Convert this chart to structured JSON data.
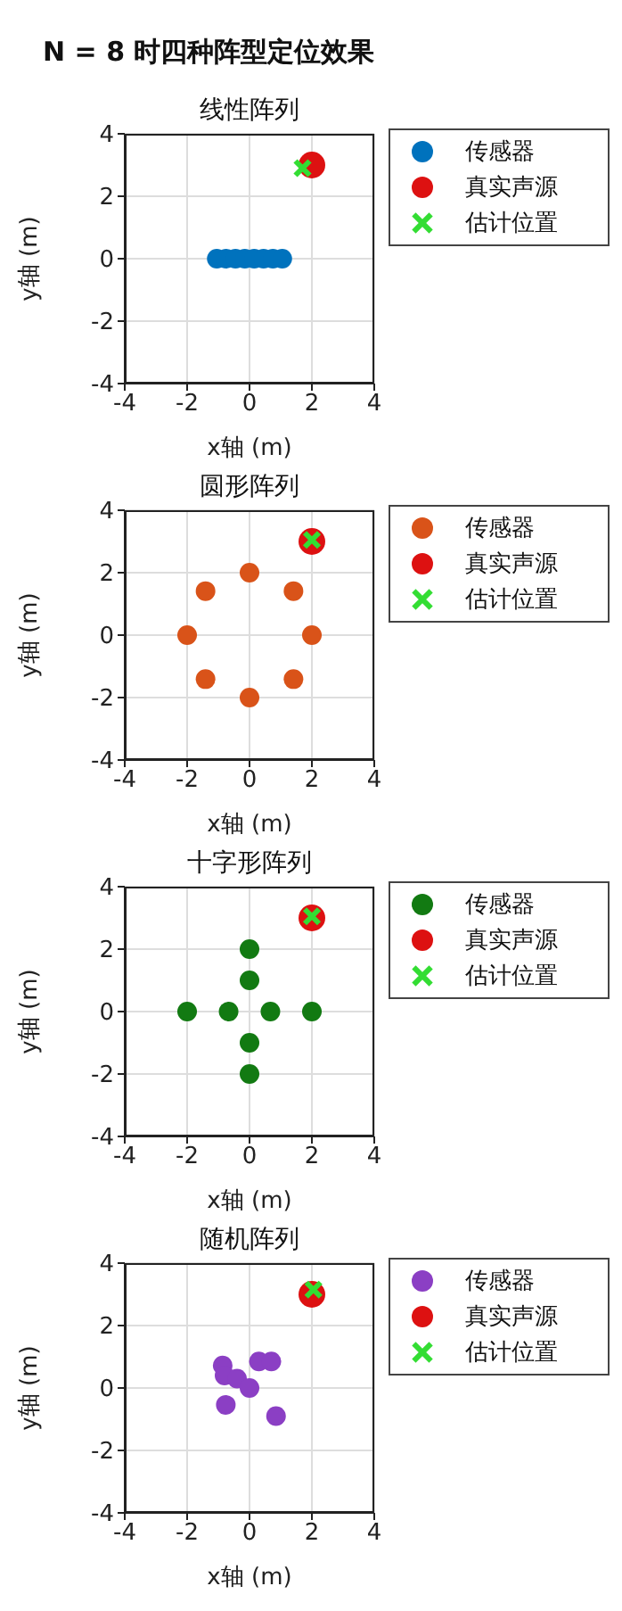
{
  "chart_data": [
    {
      "type": "scatter",
      "title": "线性阵列",
      "annotations": [
        "N = 8 时四种阵型定位效果"
      ],
      "xlabel": "x轴 (m)",
      "ylabel": "y轴 (m)",
      "xlim": [
        -4,
        4
      ],
      "ylim": [
        -4,
        4
      ],
      "xticks": [
        -4,
        -2,
        0,
        2,
        4
      ],
      "yticks": [
        -4,
        -2,
        0,
        2,
        4
      ],
      "grid": true,
      "legend": "top right",
      "series": [
        {
          "name": "传感器",
          "color": "#0072bd",
          "marker": "circle",
          "x": [
            -1.05,
            -0.75,
            -0.45,
            -0.15,
            0.15,
            0.45,
            0.75,
            1.05
          ],
          "values": [
            0,
            0,
            0,
            0,
            0,
            0,
            0,
            0
          ]
        },
        {
          "name": "真实声源",
          "color": "#dd1111",
          "marker": "circle",
          "x": [
            2
          ],
          "values": [
            3
          ]
        },
        {
          "name": "估计位置",
          "color": "#33dd33",
          "marker": "cross",
          "x": [
            1.7
          ],
          "values": [
            2.9
          ]
        }
      ]
    },
    {
      "type": "scatter",
      "title": "圆形阵列",
      "xlabel": "x轴 (m)",
      "ylabel": "y轴 (m)",
      "xlim": [
        -4,
        4
      ],
      "ylim": [
        -4,
        4
      ],
      "xticks": [
        -4,
        -2,
        0,
        2,
        4
      ],
      "yticks": [
        -4,
        -2,
        0,
        2,
        4
      ],
      "grid": true,
      "legend": "top right",
      "series": [
        {
          "name": "传感器",
          "color": "#d95319",
          "marker": "circle",
          "x": [
            2,
            1.41,
            0,
            -1.41,
            -2,
            -1.41,
            0,
            1.41
          ],
          "values": [
            0,
            1.41,
            2,
            1.41,
            0,
            -1.41,
            -2,
            -1.41
          ]
        },
        {
          "name": "真实声源",
          "color": "#dd1111",
          "marker": "circle",
          "x": [
            2
          ],
          "values": [
            3
          ]
        },
        {
          "name": "估计位置",
          "color": "#33dd33",
          "marker": "cross",
          "x": [
            2
          ],
          "values": [
            3.05
          ]
        }
      ]
    },
    {
      "type": "scatter",
      "title": "十字形阵列",
      "xlabel": "x轴 (m)",
      "ylabel": "y轴 (m)",
      "xlim": [
        -4,
        4
      ],
      "ylim": [
        -4,
        4
      ],
      "xticks": [
        -4,
        -2,
        0,
        2,
        4
      ],
      "yticks": [
        -4,
        -2,
        0,
        2,
        4
      ],
      "grid": true,
      "legend": "top right",
      "series": [
        {
          "name": "传感器",
          "color": "#127a12",
          "marker": "circle",
          "x": [
            -2,
            -0.67,
            0.67,
            2,
            0,
            0,
            0,
            0
          ],
          "values": [
            0,
            0,
            0,
            0,
            1,
            2,
            -1,
            -2
          ]
        },
        {
          "name": "真实声源",
          "color": "#dd1111",
          "marker": "circle",
          "x": [
            2
          ],
          "values": [
            3
          ]
        },
        {
          "name": "估计位置",
          "color": "#33dd33",
          "marker": "cross",
          "x": [
            2
          ],
          "values": [
            3.05
          ]
        }
      ]
    },
    {
      "type": "scatter",
      "title": "随机阵列",
      "xlabel": "x轴 (m)",
      "ylabel": "y轴 (m)",
      "xlim": [
        -4,
        4
      ],
      "ylim": [
        -4,
        4
      ],
      "xticks": [
        -4,
        -2,
        0,
        2,
        4
      ],
      "yticks": [
        -4,
        -2,
        0,
        2,
        4
      ],
      "grid": true,
      "legend": "top right",
      "series": [
        {
          "name": "传感器",
          "color": "#8b3fc4",
          "marker": "circle",
          "x": [
            -0.86,
            -0.8,
            -0.4,
            0,
            -0.76,
            0.3,
            0.7,
            0.85
          ],
          "values": [
            0.72,
            0.4,
            0.3,
            0,
            -0.54,
            0.85,
            0.85,
            -0.9
          ]
        },
        {
          "name": "真实声源",
          "color": "#dd1111",
          "marker": "circle",
          "x": [
            2
          ],
          "values": [
            3
          ]
        },
        {
          "name": "估计位置",
          "color": "#33dd33",
          "marker": "cross",
          "x": [
            2.05
          ],
          "values": [
            3.15
          ]
        }
      ]
    }
  ]
}
